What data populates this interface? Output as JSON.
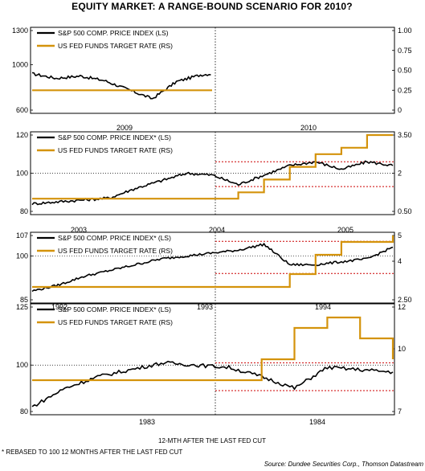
{
  "title": "EQUITY MARKET: A RANGE-BOUND SCENARIO FOR 2010?",
  "xaxis_caption": "12-MTH AFTER THE LAST FED CUT",
  "footnote": "* REBASED TO 100 12 MONTHS AFTER THE LAST FED CUT",
  "source": "Source: Dundee Securities Corp., Thomson Datastream",
  "colors": {
    "equity": "#000000",
    "fed": "#d4930b",
    "range": "#cc0000"
  },
  "chart_data": [
    {
      "type": "line",
      "panel": "2009-2010",
      "legend": [
        "S&P 500 COMP. PRICE INDEX (LS)",
        "US FED FUNDS TARGET RATE (RS)"
      ],
      "left_ticks": [
        "1300",
        "1000",
        "600"
      ],
      "right_ticks": [
        "1.00",
        "0.75",
        "0.50",
        "0.25",
        "0"
      ],
      "ylim_left": [
        600,
        1300
      ],
      "ylim_right": [
        0,
        1.0
      ],
      "period_labels": [
        "2009",
        "2010"
      ],
      "x": [
        "2008-10",
        "2008-11",
        "2008-12",
        "2009-01",
        "2009-02",
        "2009-03",
        "2009-04",
        "2009-05",
        "2009-06",
        "2009-07",
        "2009-08",
        "2009-09",
        "2009-10",
        "2009-11",
        "2009-12",
        "2010-01"
      ],
      "series": [
        {
          "name": "S&P 500 COMP. PRICE INDEX (LS)",
          "axis": "left",
          "values": [
            920,
            880,
            900,
            860,
            780,
            700,
            850,
            910,
            930,
            960,
            1010,
            1050,
            1060,
            1090,
            1110,
            1120
          ]
        },
        {
          "name": "US FED FUNDS TARGET RATE (RS)",
          "axis": "right",
          "values": [
            0.25,
            0.25,
            0.25,
            0.25,
            0.25,
            0.25,
            0.25,
            0.25,
            0.25,
            0.25,
            0.25,
            0.25,
            0.25,
            0.25,
            0.25,
            0.25
          ]
        }
      ]
    },
    {
      "type": "line",
      "panel": "2003-2005",
      "legend": [
        "S&P 500 COMP. PRICE INDEX* (LS)",
        "US FED FUNDS TARGET RATE (RS)"
      ],
      "left_ticks": [
        "120",
        "100",
        "80"
      ],
      "right_ticks": [
        "3.50",
        "2",
        "0.50"
      ],
      "ylim_left": [
        80,
        120
      ],
      "ylim_right": [
        0.5,
        3.5
      ],
      "period_labels": [
        "2003",
        "2004",
        "2005"
      ],
      "range_band": [
        93,
        106
      ],
      "x": [
        "2002-06",
        "2002-09",
        "2002-12",
        "2003-03",
        "2003-06",
        "2003-09",
        "2003-12",
        "2004-03",
        "2004-06",
        "2004-09",
        "2004-12",
        "2005-03",
        "2005-06",
        "2005-09",
        "2005-12"
      ],
      "series": [
        {
          "name": "S&P 500 COMP. PRICE INDEX* (LS)",
          "axis": "left",
          "values": [
            84,
            85,
            86,
            87,
            92,
            96,
            100,
            99,
            94,
            99,
            104,
            106,
            102,
            106,
            104
          ]
        },
        {
          "name": "US FED FUNDS TARGET RATE (RS)",
          "axis": "right",
          "values": [
            1.0,
            1.0,
            1.0,
            1.0,
            1.0,
            1.0,
            1.0,
            1.0,
            1.25,
            1.75,
            2.25,
            2.75,
            3.0,
            3.5,
            3.5
          ]
        }
      ]
    },
    {
      "type": "line",
      "panel": "1992-1994",
      "legend": [
        "S&P 500 COMP. PRICE INDEX* (LS)",
        "US FED FUNDS TARGET RATE (RS)"
      ],
      "left_ticks": [
        "107",
        "100",
        "85"
      ],
      "right_ticks": [
        "5",
        "4",
        "2.50"
      ],
      "ylim_left": [
        85,
        107
      ],
      "ylim_right": [
        2.5,
        5
      ],
      "period_labels": [
        "1992",
        "1993",
        "1994"
      ],
      "range_band": [
        94,
        105
      ],
      "x": [
        "1991-09",
        "1991-12",
        "1992-03",
        "1992-06",
        "1992-09",
        "1992-12",
        "1993-03",
        "1993-06",
        "1993-09",
        "1993-12",
        "1994-03",
        "1994-06",
        "1994-09",
        "1994-12",
        "1995-03"
      ],
      "series": [
        {
          "name": "S&P 500 COMP. PRICE INDEX* (LS)",
          "axis": "left",
          "values": [
            88,
            90,
            93,
            95,
            97,
            99,
            100,
            101,
            102,
            104,
            97,
            97,
            98,
            99,
            103
          ]
        },
        {
          "name": "US FED FUNDS TARGET RATE (RS)",
          "axis": "right",
          "values": [
            3.0,
            3.0,
            3.0,
            3.0,
            3.0,
            3.0,
            3.0,
            3.0,
            3.0,
            3.0,
            3.5,
            4.25,
            4.75,
            4.75,
            5.0
          ]
        }
      ]
    },
    {
      "type": "line",
      "panel": "1983-1984",
      "legend": [
        "S&P 500 COMP. PRICE INDEX* (LS)",
        "US FED FUNDS TARGET RATE (RS)"
      ],
      "left_ticks": [
        "125",
        "100",
        "80"
      ],
      "right_ticks": [
        "12",
        "10",
        "7"
      ],
      "ylim_left": [
        80,
        125
      ],
      "ylim_right": [
        7,
        12
      ],
      "period_labels": [
        "1983",
        "1984"
      ],
      "range_band": [
        89,
        101
      ],
      "x": [
        "1982-06",
        "1982-09",
        "1982-12",
        "1983-03",
        "1983-06",
        "1983-09",
        "1983-12",
        "1984-03",
        "1984-06",
        "1984-09",
        "1984-12",
        "1985-03"
      ],
      "series": [
        {
          "name": "S&P 500 COMP. PRICE INDEX* (LS)",
          "axis": "left",
          "values": [
            82,
            90,
            95,
            98,
            101,
            100,
            99,
            95,
            90,
            99,
            98,
            97
          ]
        },
        {
          "name": "US FED FUNDS TARGET RATE (RS)",
          "axis": "right",
          "values": [
            8.5,
            8.5,
            8.5,
            8.5,
            8.5,
            8.5,
            8.5,
            9.5,
            11.0,
            11.5,
            10.5,
            9.5
          ]
        }
      ]
    }
  ]
}
